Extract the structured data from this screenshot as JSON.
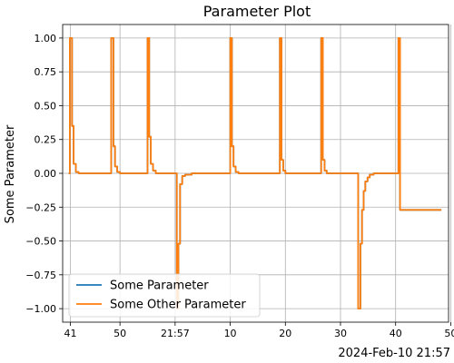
{
  "chart_data": {
    "type": "line",
    "title": "Parameter Plot",
    "ylabel": "Some Parameter",
    "xlabel": "",
    "x_offset_label": "2024-Feb-10 21:57",
    "x_unit": "seconds past 21:56 on 2024-Feb-10",
    "xlim": [
      39.6,
      109.6
    ],
    "ylim": [
      -1.1,
      1.1
    ],
    "grid": true,
    "legend_position": "lower-left",
    "x_ticks": [
      {
        "value": 41,
        "label": "41"
      },
      {
        "value": 50,
        "label": "50"
      },
      {
        "value": 60,
        "label": "21:57"
      },
      {
        "value": 70,
        "label": "10"
      },
      {
        "value": 80,
        "label": "20"
      },
      {
        "value": 90,
        "label": "30"
      },
      {
        "value": 100,
        "label": "40"
      },
      {
        "value": 110,
        "label": "50"
      }
    ],
    "y_ticks": [
      {
        "value": 1.0,
        "label": "1.00"
      },
      {
        "value": 0.75,
        "label": "0.75"
      },
      {
        "value": 0.5,
        "label": "0.50"
      },
      {
        "value": 0.25,
        "label": "0.25"
      },
      {
        "value": 0.0,
        "label": "0.00"
      },
      {
        "value": -0.25,
        "label": "−0.25"
      },
      {
        "value": -0.5,
        "label": "−0.50"
      },
      {
        "value": -0.75,
        "label": "−0.75"
      },
      {
        "value": -1.0,
        "label": "−1.00"
      }
    ],
    "series": [
      {
        "name": "Some Parameter",
        "color": "#1f77b4",
        "points": [
          [
            40.7,
            0
          ],
          [
            40.9,
            0
          ],
          [
            40.9,
            1
          ],
          [
            41.3,
            1
          ],
          [
            41.3,
            0.35
          ],
          [
            41.6,
            0.35
          ],
          [
            41.6,
            0.07
          ],
          [
            42,
            0.07
          ],
          [
            42,
            0.01
          ],
          [
            42.5,
            0.01
          ],
          [
            42.5,
            0
          ],
          [
            48.4,
            0
          ],
          [
            48.4,
            1
          ],
          [
            48.8,
            1
          ],
          [
            48.8,
            0.2
          ],
          [
            49.1,
            0.2
          ],
          [
            49.1,
            0.05
          ],
          [
            49.5,
            0.05
          ],
          [
            49.5,
            0.01
          ],
          [
            50,
            0.01
          ],
          [
            50,
            0
          ],
          [
            55,
            0
          ],
          [
            55,
            1
          ],
          [
            55.3,
            1
          ],
          [
            55.3,
            0.27
          ],
          [
            55.6,
            0.27
          ],
          [
            55.6,
            0.07
          ],
          [
            56,
            0.07
          ],
          [
            56,
            0.02
          ],
          [
            56.5,
            0.02
          ],
          [
            56.5,
            0
          ],
          [
            60.3,
            0
          ],
          [
            60.3,
            -1
          ],
          [
            60.6,
            -1
          ],
          [
            60.6,
            -0.52
          ],
          [
            60.9,
            -0.52
          ],
          [
            60.9,
            -0.08
          ],
          [
            61.3,
            -0.08
          ],
          [
            61.3,
            -0.02
          ],
          [
            61.8,
            -0.02
          ],
          [
            61.8,
            -0.01
          ],
          [
            63,
            -0.01
          ],
          [
            63,
            0
          ],
          [
            70,
            0
          ],
          [
            70,
            1
          ],
          [
            70.3,
            1
          ],
          [
            70.3,
            0.2
          ],
          [
            70.6,
            0.2
          ],
          [
            70.6,
            0.05
          ],
          [
            71,
            0.05
          ],
          [
            71,
            0.01
          ],
          [
            71.5,
            0.01
          ],
          [
            71.5,
            0
          ],
          [
            79,
            0
          ],
          [
            79,
            1
          ],
          [
            79.3,
            1
          ],
          [
            79.3,
            0.1
          ],
          [
            79.6,
            0.1
          ],
          [
            79.6,
            0.02
          ],
          [
            80,
            0.02
          ],
          [
            80,
            0
          ],
          [
            86.5,
            0
          ],
          [
            86.5,
            1
          ],
          [
            86.8,
            1
          ],
          [
            86.8,
            0.1
          ],
          [
            87.1,
            0.1
          ],
          [
            87.1,
            0.02
          ],
          [
            87.5,
            0.02
          ],
          [
            87.5,
            0
          ],
          [
            93.2,
            0
          ],
          [
            93.2,
            -1
          ],
          [
            93.6,
            -1
          ],
          [
            93.6,
            -0.52
          ],
          [
            93.9,
            -0.52
          ],
          [
            93.9,
            -0.27
          ],
          [
            94.2,
            -0.27
          ],
          [
            94.2,
            -0.13
          ],
          [
            94.5,
            -0.13
          ],
          [
            94.5,
            -0.06
          ],
          [
            94.9,
            -0.06
          ],
          [
            94.9,
            -0.03
          ],
          [
            95.3,
            -0.03
          ],
          [
            95.3,
            -0.01
          ],
          [
            96,
            -0.01
          ],
          [
            96,
            0
          ],
          [
            100.5,
            0
          ],
          [
            100.5,
            1
          ],
          [
            100.8,
            1
          ],
          [
            100.8,
            -0.27
          ],
          [
            108.3,
            -0.27
          ]
        ]
      },
      {
        "name": "Some Other Parameter",
        "color": "#ff7f0e",
        "points": [
          [
            40.7,
            0
          ],
          [
            40.9,
            0
          ],
          [
            40.9,
            1
          ],
          [
            41.3,
            1
          ],
          [
            41.3,
            0.35
          ],
          [
            41.6,
            0.35
          ],
          [
            41.6,
            0.07
          ],
          [
            42,
            0.07
          ],
          [
            42,
            0.01
          ],
          [
            42.5,
            0.01
          ],
          [
            42.5,
            0
          ],
          [
            48.4,
            0
          ],
          [
            48.4,
            1
          ],
          [
            48.8,
            1
          ],
          [
            48.8,
            0.2
          ],
          [
            49.1,
            0.2
          ],
          [
            49.1,
            0.05
          ],
          [
            49.5,
            0.05
          ],
          [
            49.5,
            0.01
          ],
          [
            50,
            0.01
          ],
          [
            50,
            0
          ],
          [
            55,
            0
          ],
          [
            55,
            1
          ],
          [
            55.3,
            1
          ],
          [
            55.3,
            0.27
          ],
          [
            55.6,
            0.27
          ],
          [
            55.6,
            0.07
          ],
          [
            56,
            0.07
          ],
          [
            56,
            0.02
          ],
          [
            56.5,
            0.02
          ],
          [
            56.5,
            0
          ],
          [
            60.3,
            0
          ],
          [
            60.3,
            -1
          ],
          [
            60.6,
            -1
          ],
          [
            60.6,
            -0.52
          ],
          [
            60.9,
            -0.52
          ],
          [
            60.9,
            -0.08
          ],
          [
            61.3,
            -0.08
          ],
          [
            61.3,
            -0.02
          ],
          [
            61.8,
            -0.02
          ],
          [
            61.8,
            -0.01
          ],
          [
            63,
            -0.01
          ],
          [
            63,
            0
          ],
          [
            70,
            0
          ],
          [
            70,
            1
          ],
          [
            70.3,
            1
          ],
          [
            70.3,
            0.2
          ],
          [
            70.6,
            0.2
          ],
          [
            70.6,
            0.05
          ],
          [
            71,
            0.05
          ],
          [
            71,
            0.01
          ],
          [
            71.5,
            0.01
          ],
          [
            71.5,
            0
          ],
          [
            79,
            0
          ],
          [
            79,
            1
          ],
          [
            79.3,
            1
          ],
          [
            79.3,
            0.1
          ],
          [
            79.6,
            0.1
          ],
          [
            79.6,
            0.02
          ],
          [
            80,
            0.02
          ],
          [
            80,
            0
          ],
          [
            86.5,
            0
          ],
          [
            86.5,
            1
          ],
          [
            86.8,
            1
          ],
          [
            86.8,
            0.1
          ],
          [
            87.1,
            0.1
          ],
          [
            87.1,
            0.02
          ],
          [
            87.5,
            0.02
          ],
          [
            87.5,
            0
          ],
          [
            93.2,
            0
          ],
          [
            93.2,
            -1
          ],
          [
            93.6,
            -1
          ],
          [
            93.6,
            -0.52
          ],
          [
            93.9,
            -0.52
          ],
          [
            93.9,
            -0.27
          ],
          [
            94.2,
            -0.27
          ],
          [
            94.2,
            -0.13
          ],
          [
            94.5,
            -0.13
          ],
          [
            94.5,
            -0.06
          ],
          [
            94.9,
            -0.06
          ],
          [
            94.9,
            -0.03
          ],
          [
            95.3,
            -0.03
          ],
          [
            95.3,
            -0.01
          ],
          [
            96,
            -0.01
          ],
          [
            96,
            0
          ],
          [
            100.5,
            0
          ],
          [
            100.5,
            1
          ],
          [
            100.8,
            1
          ],
          [
            100.8,
            -0.27
          ],
          [
            108.3,
            -0.27
          ]
        ]
      }
    ]
  }
}
